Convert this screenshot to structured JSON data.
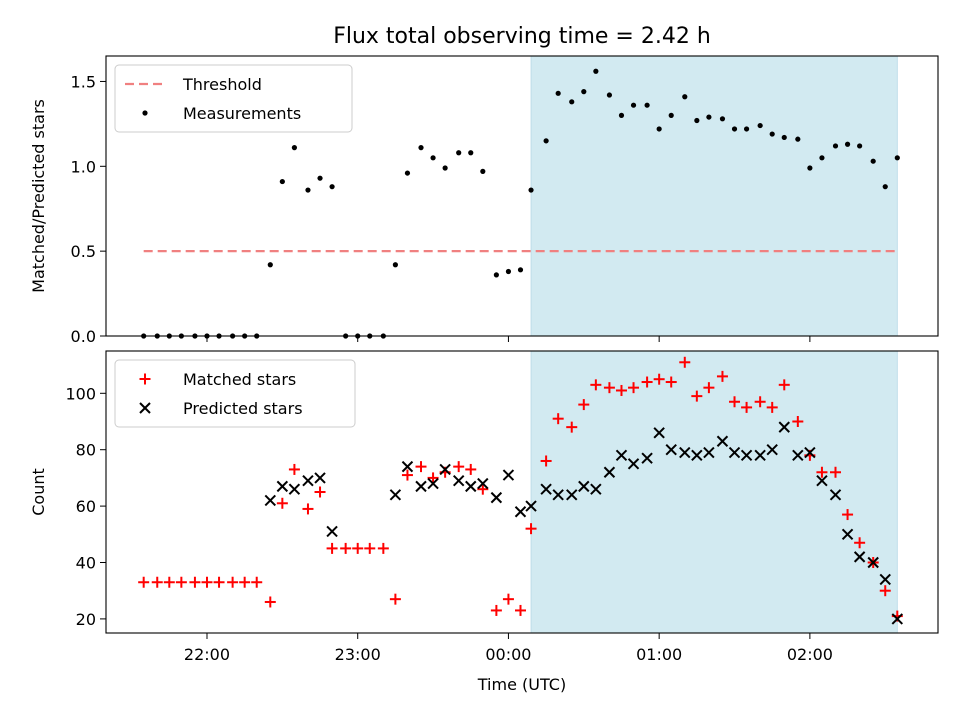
{
  "chart_data": {
    "title": "Flux total observing time = 2.42 h",
    "xlabel": "Time (UTC)",
    "x_ticks": [
      "22:00",
      "23:00",
      "00:00",
      "01:00",
      "02:00"
    ],
    "x_tick_hours": [
      22,
      23,
      24,
      25,
      26
    ],
    "xlim_hours": [
      21.33,
      26.85
    ],
    "highlight_span_hours": [
      24.15,
      26.58
    ],
    "highlight_color": "#d2eaf1",
    "panels": [
      {
        "type": "scatter",
        "ylabel": "Matched/Predicted stars",
        "ylim": [
          0,
          1.65
        ],
        "y_ticks": [
          "0.0",
          "0.5",
          "1.0",
          "1.5"
        ],
        "y_tick_values": [
          0,
          0.5,
          1.0,
          1.5
        ],
        "legend": {
          "placement": "top-left",
          "entries": [
            "Threshold",
            "Measurements"
          ]
        },
        "threshold": {
          "name": "Threshold",
          "value": 0.5,
          "x_start": 21.58,
          "x_end": 26.58,
          "color": "#f08080",
          "style": "dashed"
        },
        "series": [
          {
            "name": "Measurements",
            "marker": "dot",
            "color": "#000000",
            "points": [
              [
                21.58,
                0.0
              ],
              [
                21.67,
                0.0
              ],
              [
                21.75,
                0.0
              ],
              [
                21.83,
                0.0
              ],
              [
                21.92,
                0.0
              ],
              [
                22.0,
                0.0
              ],
              [
                22.08,
                0.0
              ],
              [
                22.17,
                0.0
              ],
              [
                22.25,
                0.0
              ],
              [
                22.33,
                0.0
              ],
              [
                22.42,
                0.42
              ],
              [
                22.5,
                0.91
              ],
              [
                22.58,
                1.11
              ],
              [
                22.67,
                0.86
              ],
              [
                22.75,
                0.93
              ],
              [
                22.83,
                0.88
              ],
              [
                22.92,
                0.0
              ],
              [
                23.0,
                0.0
              ],
              [
                23.08,
                0.0
              ],
              [
                23.17,
                0.0
              ],
              [
                23.25,
                0.42
              ],
              [
                23.33,
                0.96
              ],
              [
                23.42,
                1.11
              ],
              [
                23.5,
                1.05
              ],
              [
                23.58,
                0.99
              ],
              [
                23.67,
                1.08
              ],
              [
                23.75,
                1.08
              ],
              [
                23.83,
                0.97
              ],
              [
                23.92,
                0.36
              ],
              [
                24.0,
                0.38
              ],
              [
                24.08,
                0.39
              ],
              [
                24.15,
                0.86
              ],
              [
                24.25,
                1.15
              ],
              [
                24.33,
                1.43
              ],
              [
                24.42,
                1.38
              ],
              [
                24.5,
                1.44
              ],
              [
                24.58,
                1.56
              ],
              [
                24.67,
                1.42
              ],
              [
                24.75,
                1.3
              ],
              [
                24.83,
                1.36
              ],
              [
                24.92,
                1.36
              ],
              [
                25.0,
                1.22
              ],
              [
                25.08,
                1.3
              ],
              [
                25.17,
                1.41
              ],
              [
                25.25,
                1.27
              ],
              [
                25.33,
                1.29
              ],
              [
                25.42,
                1.28
              ],
              [
                25.5,
                1.22
              ],
              [
                25.58,
                1.22
              ],
              [
                25.67,
                1.24
              ],
              [
                25.75,
                1.19
              ],
              [
                25.83,
                1.17
              ],
              [
                25.92,
                1.16
              ],
              [
                26.0,
                0.99
              ],
              [
                26.08,
                1.05
              ],
              [
                26.17,
                1.12
              ],
              [
                26.25,
                1.13
              ],
              [
                26.33,
                1.12
              ],
              [
                26.42,
                1.03
              ],
              [
                26.5,
                0.88
              ],
              [
                26.58,
                1.05
              ]
            ]
          }
        ]
      },
      {
        "type": "scatter",
        "ylabel": "Count",
        "ylim": [
          15,
          115
        ],
        "y_ticks": [
          "20",
          "40",
          "60",
          "80",
          "100"
        ],
        "y_tick_values": [
          20,
          40,
          60,
          80,
          100
        ],
        "legend": {
          "placement": "top-left",
          "entries": [
            "Matched stars",
            "Predicted stars"
          ]
        },
        "series": [
          {
            "name": "Matched stars",
            "marker": "plus",
            "color": "#ff0000",
            "points": [
              [
                21.58,
                33
              ],
              [
                21.67,
                33
              ],
              [
                21.75,
                33
              ],
              [
                21.83,
                33
              ],
              [
                21.92,
                33
              ],
              [
                22.0,
                33
              ],
              [
                22.08,
                33
              ],
              [
                22.17,
                33
              ],
              [
                22.25,
                33
              ],
              [
                22.33,
                33
              ],
              [
                22.42,
                26
              ],
              [
                22.5,
                61
              ],
              [
                22.58,
                73
              ],
              [
                22.67,
                59
              ],
              [
                22.75,
                65
              ],
              [
                22.83,
                45
              ],
              [
                22.92,
                45
              ],
              [
                23.0,
                45
              ],
              [
                23.08,
                45
              ],
              [
                23.17,
                45
              ],
              [
                23.25,
                27
              ],
              [
                23.33,
                71
              ],
              [
                23.42,
                74
              ],
              [
                23.5,
                70
              ],
              [
                23.58,
                72
              ],
              [
                23.67,
                74
              ],
              [
                23.75,
                73
              ],
              [
                23.83,
                66
              ],
              [
                23.92,
                23
              ],
              [
                24.0,
                27
              ],
              [
                24.08,
                23
              ],
              [
                24.15,
                52
              ],
              [
                24.25,
                76
              ],
              [
                24.33,
                91
              ],
              [
                24.42,
                88
              ],
              [
                24.5,
                96
              ],
              [
                24.58,
                103
              ],
              [
                24.67,
                102
              ],
              [
                24.75,
                101
              ],
              [
                24.83,
                102
              ],
              [
                24.92,
                104
              ],
              [
                25.0,
                105
              ],
              [
                25.08,
                104
              ],
              [
                25.17,
                111
              ],
              [
                25.25,
                99
              ],
              [
                25.33,
                102
              ],
              [
                25.42,
                106
              ],
              [
                25.5,
                97
              ],
              [
                25.58,
                95
              ],
              [
                25.67,
                97
              ],
              [
                25.75,
                95
              ],
              [
                25.83,
                103
              ],
              [
                25.92,
                90
              ],
              [
                26.0,
                78
              ],
              [
                26.08,
                72
              ],
              [
                26.17,
                72
              ],
              [
                26.25,
                57
              ],
              [
                26.33,
                47
              ],
              [
                26.42,
                40
              ],
              [
                26.5,
                30
              ],
              [
                26.58,
                21
              ]
            ]
          },
          {
            "name": "Predicted stars",
            "marker": "x",
            "color": "#000000",
            "points": [
              [
                22.42,
                62
              ],
              [
                22.5,
                67
              ],
              [
                22.58,
                66
              ],
              [
                22.67,
                69
              ],
              [
                22.75,
                70
              ],
              [
                22.83,
                51
              ],
              [
                23.25,
                64
              ],
              [
                23.33,
                74
              ],
              [
                23.42,
                67
              ],
              [
                23.5,
                68
              ],
              [
                23.58,
                73
              ],
              [
                23.67,
                69
              ],
              [
                23.75,
                67
              ],
              [
                23.83,
                68
              ],
              [
                23.92,
                63
              ],
              [
                24.0,
                71
              ],
              [
                24.08,
                58
              ],
              [
                24.15,
                60
              ],
              [
                24.25,
                66
              ],
              [
                24.33,
                64
              ],
              [
                24.42,
                64
              ],
              [
                24.5,
                67
              ],
              [
                24.58,
                66
              ],
              [
                24.67,
                72
              ],
              [
                24.75,
                78
              ],
              [
                24.83,
                75
              ],
              [
                24.92,
                77
              ],
              [
                25.0,
                86
              ],
              [
                25.08,
                80
              ],
              [
                25.17,
                79
              ],
              [
                25.25,
                78
              ],
              [
                25.33,
                79
              ],
              [
                25.42,
                83
              ],
              [
                25.5,
                79
              ],
              [
                25.58,
                78
              ],
              [
                25.67,
                78
              ],
              [
                25.75,
                80
              ],
              [
                25.83,
                88
              ],
              [
                25.92,
                78
              ],
              [
                26.0,
                79
              ],
              [
                26.08,
                69
              ],
              [
                26.17,
                64
              ],
              [
                26.25,
                50
              ],
              [
                26.33,
                42
              ],
              [
                26.42,
                40
              ],
              [
                26.5,
                34
              ],
              [
                26.58,
                20
              ]
            ]
          }
        ]
      }
    ]
  }
}
